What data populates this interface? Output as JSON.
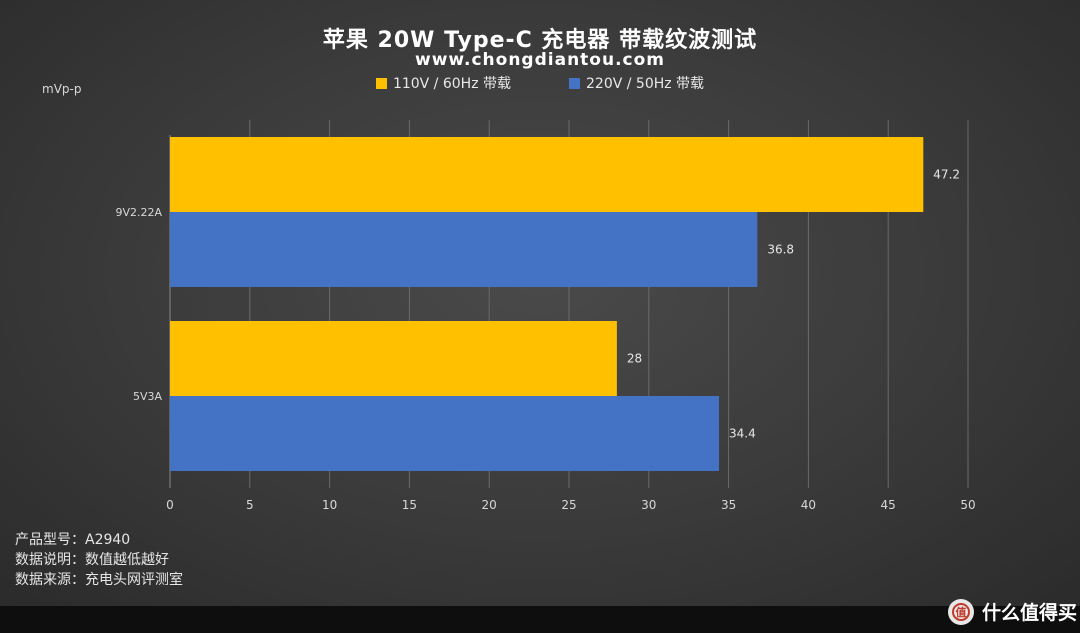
{
  "title": "苹果 20W Type-C 充电器 带载纹波测试",
  "subtitle": "www.chongdiantou.com",
  "unit_label": "mVp-p",
  "colors": {
    "series_110": "#ffc000",
    "series_220": "#4472c4",
    "grid": "#6a6a6a",
    "axis_text": "#d8d8d8"
  },
  "notes": {
    "product": "产品型号：A2940",
    "explain": "数据说明：数值越低越好",
    "source": "数据来源：充电头网评测室"
  },
  "watermark": {
    "text": "什么值得买",
    "icon": "zhi-logo-icon"
  },
  "chart_data": {
    "type": "bar",
    "orientation": "horizontal",
    "categories": [
      "9V2.22A",
      "5V3A"
    ],
    "series": [
      {
        "name": "110V / 60Hz 带载",
        "color": "#ffc000",
        "values": [
          47.2,
          28
        ]
      },
      {
        "name": "220V / 50Hz 带载",
        "color": "#4472c4",
        "values": [
          36.8,
          34.4
        ]
      }
    ],
    "data_labels": [
      [
        "47.2",
        "28"
      ],
      [
        "36.8",
        "34.4"
      ]
    ],
    "xlim": [
      0,
      50
    ],
    "xticks": [
      0,
      5,
      10,
      15,
      20,
      25,
      30,
      35,
      40,
      45,
      50
    ],
    "xtick_labels": [
      "0",
      "5",
      "10",
      "15",
      "20",
      "25",
      "30",
      "35",
      "40",
      "45",
      "50"
    ],
    "ylabel": "mVp-p",
    "grid": true,
    "legend_position": "top-center"
  }
}
